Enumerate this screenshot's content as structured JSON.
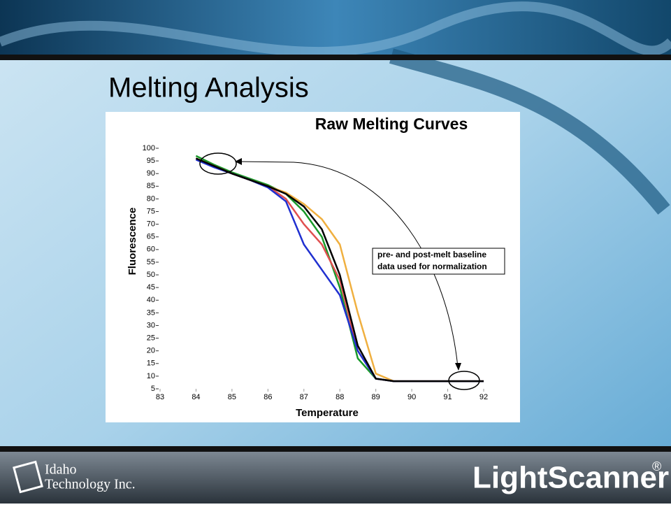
{
  "slide": {
    "title": "Melting Analysis",
    "company": [
      "Idaho",
      "Technology Inc."
    ],
    "product": "LightScanner",
    "product_mark": "®"
  },
  "chart_data": {
    "type": "line",
    "title": "Raw Melting Curves",
    "x_label": "Temperature",
    "y_label": "Fluorescence",
    "annotation": [
      "pre- and post-melt baseline",
      "data used for normalization"
    ],
    "x": [
      84,
      84.5,
      85,
      85.5,
      86,
      86.5,
      87,
      87.5,
      88,
      88.5,
      89,
      89.5,
      90,
      90.5,
      91,
      91.5,
      92
    ],
    "series": [
      {
        "color": "#1a9a2a",
        "values": [
          97,
          93.5,
          90.5,
          88,
          85.5,
          82,
          75,
          65,
          45,
          17,
          9,
          8,
          8,
          8,
          8,
          8,
          8
        ]
      },
      {
        "color": "#e05050",
        "values": [
          96,
          93,
          90,
          87.5,
          85,
          80,
          70,
          62,
          48,
          20,
          9,
          8,
          8,
          8,
          8,
          8,
          8
        ]
      },
      {
        "color": "#f0b040",
        "values": [
          96,
          93,
          90,
          87.5,
          85,
          82.5,
          78,
          72,
          62,
          35,
          11,
          8,
          8,
          8,
          8,
          8,
          8
        ]
      },
      {
        "color": "#2030d0",
        "values": [
          95.5,
          92.5,
          90,
          87.5,
          84.5,
          79,
          62,
          52,
          42,
          20,
          9,
          8,
          8,
          8,
          8,
          8,
          8
        ]
      },
      {
        "color": "#000000",
        "values": [
          96,
          93,
          90,
          87.5,
          85,
          82,
          77,
          68,
          50,
          22,
          9,
          8,
          8,
          8,
          8,
          8,
          8
        ]
      }
    ],
    "xlim": [
      83,
      92
    ],
    "xticks": [
      83,
      84,
      85,
      86,
      87,
      88,
      89,
      90,
      91,
      92
    ],
    "ylim": [
      5,
      100
    ],
    "yticks": [
      5,
      10,
      15,
      20,
      25,
      30,
      35,
      40,
      45,
      50,
      55,
      60,
      65,
      70,
      75,
      80,
      85,
      90,
      95,
      100
    ]
  }
}
